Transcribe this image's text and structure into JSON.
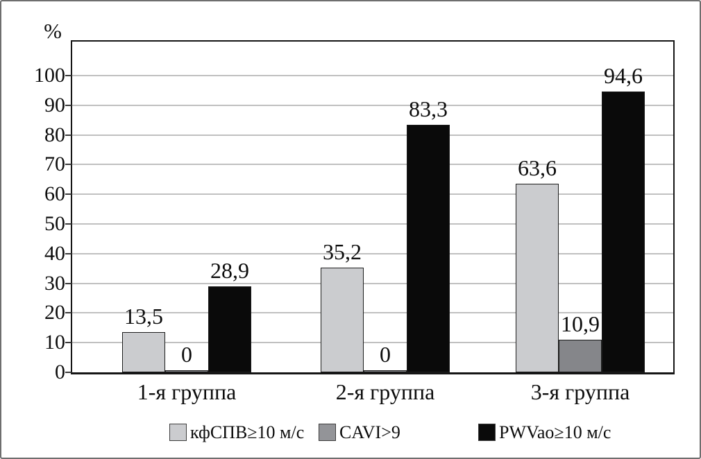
{
  "chart_data": {
    "type": "bar",
    "title": "",
    "xlabel": "",
    "ylabel": "%",
    "ylim": [
      0,
      111
    ],
    "yticks": [
      0,
      10,
      20,
      30,
      40,
      50,
      60,
      70,
      80,
      90,
      100
    ],
    "grid": "horizontal",
    "legend_position": "bottom",
    "categories": [
      "1-я группа",
      "2-я группа",
      "3-я группа"
    ],
    "series": [
      {
        "name": "кфСПВ≥10 м/с",
        "color": "#cbcccf",
        "values": [
          13.5,
          35.2,
          63.6
        ],
        "value_labels": [
          "13,5",
          "35,2",
          "63,6"
        ]
      },
      {
        "name": "CAVI>9",
        "color": "#85868a",
        "legend_color": "#939498",
        "values": [
          0,
          0,
          10.9
        ],
        "value_labels": [
          "0",
          "0",
          "10,9"
        ]
      },
      {
        "name": "PWVao≥10 м/с",
        "color": "#0a0a0a",
        "values": [
          28.9,
          83.3,
          94.6
        ],
        "value_labels": [
          "28,9",
          "83,3",
          "94,6"
        ]
      }
    ]
  }
}
